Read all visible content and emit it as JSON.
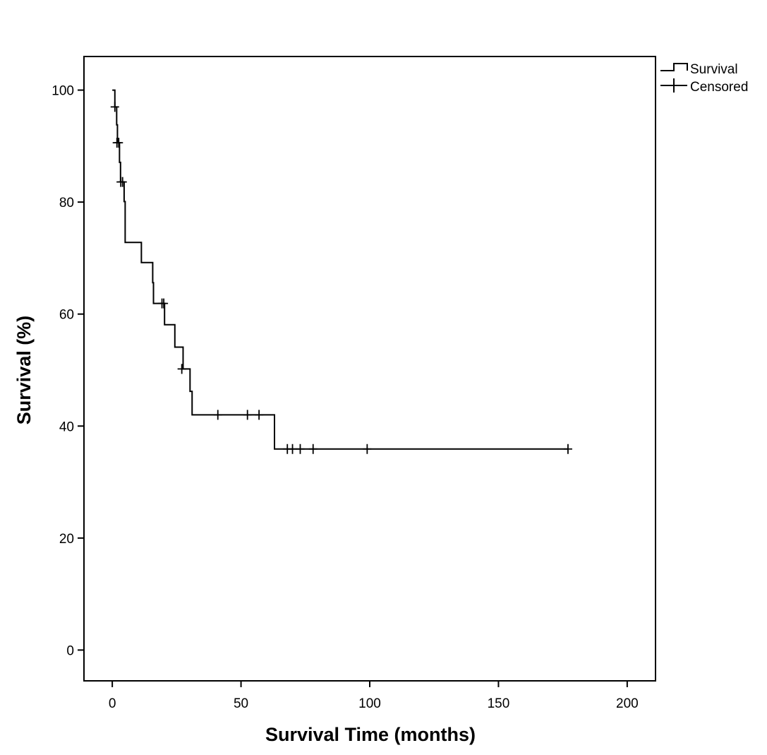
{
  "chart_data": {
    "type": "line",
    "subtype": "kaplan-meier",
    "xlabel": "Survival Time (months)",
    "ylabel": "Survival (%)",
    "xlim": [
      -11,
      211
    ],
    "ylim": [
      -5.5,
      106
    ],
    "xticks": [
      0,
      50,
      100,
      150,
      200
    ],
    "yticks": [
      0,
      20,
      40,
      60,
      80,
      100
    ],
    "grid": false,
    "legend": {
      "placement": "top-right, outside plot",
      "entries": [
        {
          "label": "Survival",
          "symbol": "step-line"
        },
        {
          "label": "Censored",
          "symbol": "plus"
        }
      ]
    },
    "series": [
      {
        "name": "Survival",
        "steps": [
          {
            "x": 0,
            "y": 100
          },
          {
            "x": 1.0,
            "y": 97
          },
          {
            "x": 1.7,
            "y": 93.8
          },
          {
            "x": 2.0,
            "y": 90.6
          },
          {
            "x": 2.8,
            "y": 87.1
          },
          {
            "x": 3.2,
            "y": 83.6
          },
          {
            "x": 4.6,
            "y": 80.1
          },
          {
            "x": 5.0,
            "y": 72.8
          },
          {
            "x": 11.3,
            "y": 69.2
          },
          {
            "x": 15.7,
            "y": 65.6
          },
          {
            "x": 16.0,
            "y": 61.9
          },
          {
            "x": 20.3,
            "y": 58.1
          },
          {
            "x": 24.3,
            "y": 54.1
          },
          {
            "x": 27.5,
            "y": 50.2
          },
          {
            "x": 30.2,
            "y": 46.2
          },
          {
            "x": 31.0,
            "y": 42.0
          },
          {
            "x": 63.0,
            "y": 35.9
          }
        ],
        "end_x": 177
      },
      {
        "name": "Censored",
        "points": [
          {
            "x": 1.0,
            "y": 97
          },
          {
            "x": 1.8,
            "y": 90.6
          },
          {
            "x": 2.5,
            "y": 90.6
          },
          {
            "x": 3.3,
            "y": 83.6
          },
          {
            "x": 4.0,
            "y": 83.6
          },
          {
            "x": 19.3,
            "y": 61.9
          },
          {
            "x": 20.0,
            "y": 61.9
          },
          {
            "x": 27.0,
            "y": 50.2
          },
          {
            "x": 41.0,
            "y": 42.0
          },
          {
            "x": 52.5,
            "y": 42.0
          },
          {
            "x": 57.0,
            "y": 42.0
          },
          {
            "x": 68.0,
            "y": 35.9
          },
          {
            "x": 70.0,
            "y": 35.9
          },
          {
            "x": 73.0,
            "y": 35.9
          },
          {
            "x": 78.0,
            "y": 35.9
          },
          {
            "x": 99.0,
            "y": 35.9
          },
          {
            "x": 177.0,
            "y": 35.9
          }
        ]
      }
    ]
  }
}
